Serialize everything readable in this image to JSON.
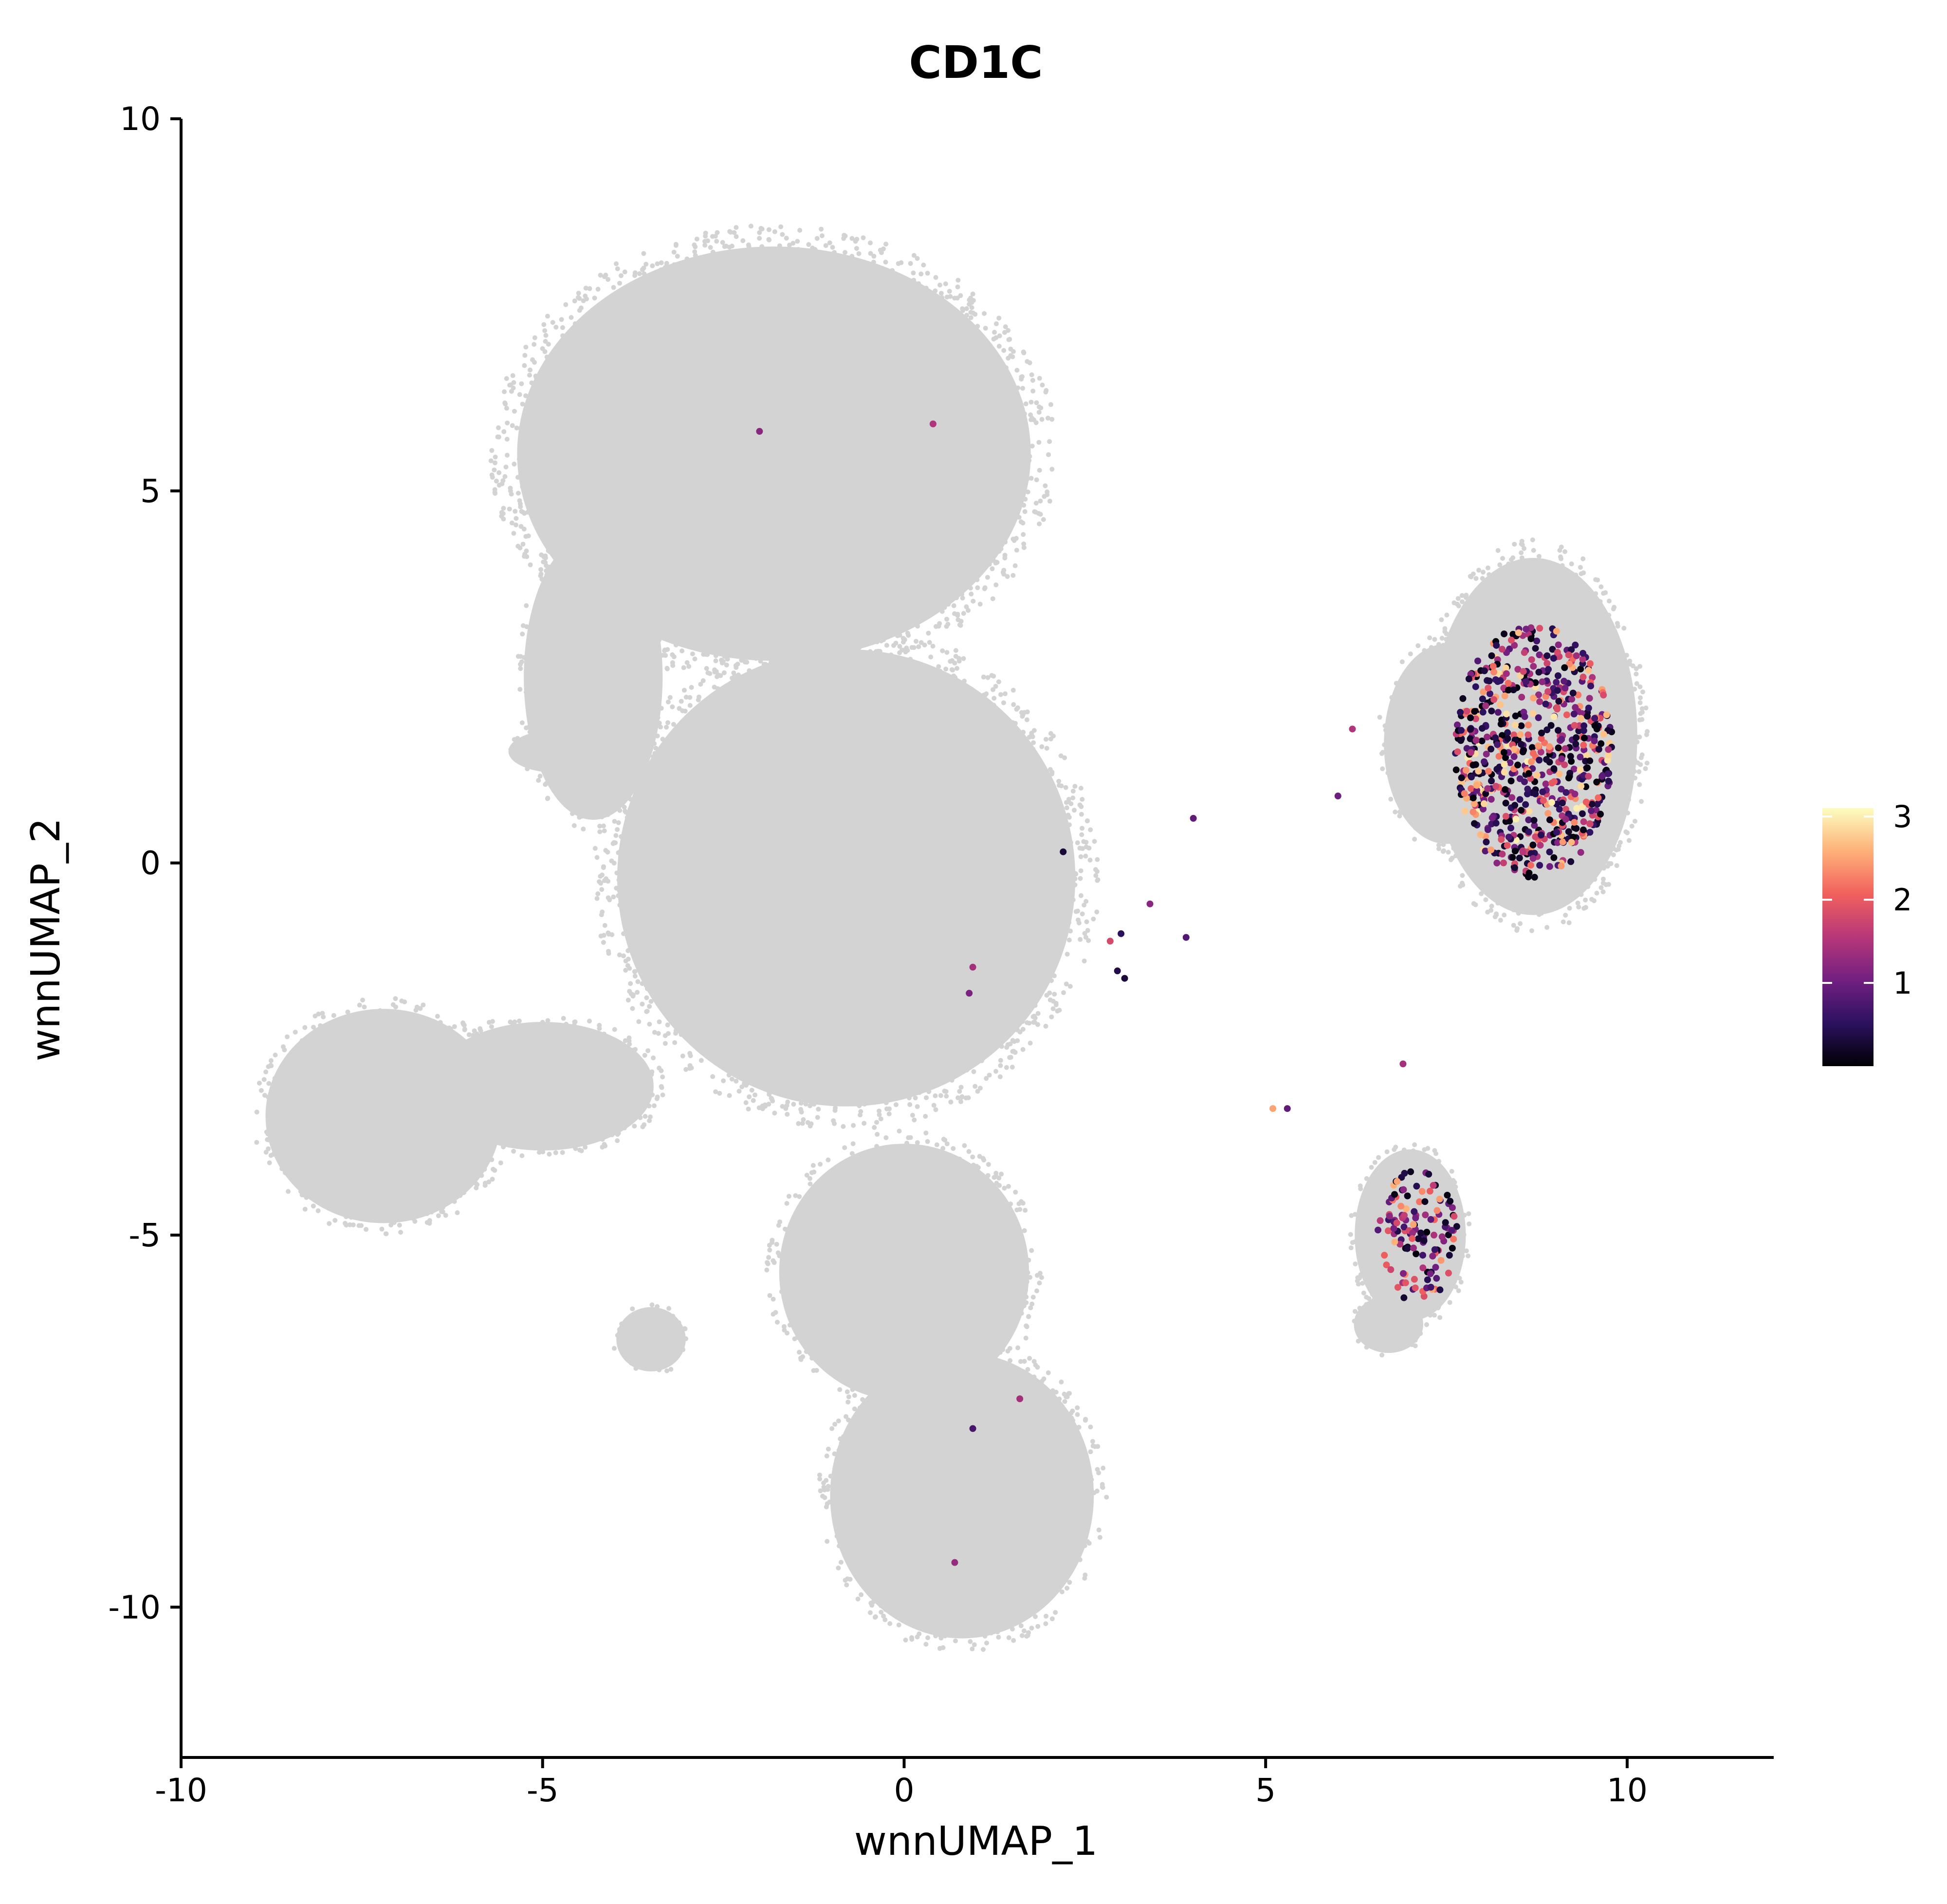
{
  "chart_data": {
    "type": "scatter",
    "title": "CD1C",
    "xlabel": "wnnUMAP_1",
    "ylabel": "wnnUMAP_2",
    "xlim": [
      -10,
      12
    ],
    "ylim": [
      -12,
      10
    ],
    "x_ticks": [
      {
        "value": -10,
        "label": "-10"
      },
      {
        "value": -5,
        "label": "-5"
      },
      {
        "value": 0,
        "label": "0"
      },
      {
        "value": 5,
        "label": "5"
      },
      {
        "value": 10,
        "label": "10"
      }
    ],
    "y_ticks": [
      {
        "value": 10,
        "label": "10"
      },
      {
        "value": 5,
        "label": "5"
      },
      {
        "value": 0,
        "label": "0"
      },
      {
        "value": -5,
        "label": "-5"
      },
      {
        "value": -10,
        "label": "-10"
      }
    ],
    "grid": false,
    "background_color": "#d3d3d3",
    "colorbar": {
      "range": [
        0,
        3.1
      ],
      "ticks": [
        {
          "value": 1,
          "label": "1"
        },
        {
          "value": 2,
          "label": "2"
        },
        {
          "value": 3,
          "label": "3"
        }
      ],
      "colors": [
        "#000004",
        "#2c115f",
        "#721f81",
        "#b73779",
        "#f1605d",
        "#feb078",
        "#fcfdbf"
      ],
      "placement": "right"
    },
    "background_regions": [
      {
        "name": "top-cluster",
        "cx": -1.8,
        "cy": 5.5,
        "rx": 3.7,
        "ry": 2.9
      },
      {
        "name": "upper-left-arm",
        "cx": -4.3,
        "cy": 2.5,
        "rx": 1.0,
        "ry": 2.0
      },
      {
        "name": "left-arm-tip",
        "cx": -4.8,
        "cy": 1.5,
        "rx": 0.7,
        "ry": 0.3
      },
      {
        "name": "center-body",
        "cx": -0.8,
        "cy": -0.2,
        "rx": 3.3,
        "ry": 3.2
      },
      {
        "name": "left-lobe",
        "cx": -7.2,
        "cy": -3.4,
        "rx": 1.7,
        "ry": 1.5
      },
      {
        "name": "left-bridge",
        "cx": -5.0,
        "cy": -3.0,
        "rx": 1.6,
        "ry": 0.9
      },
      {
        "name": "lower-body",
        "cx": 0.0,
        "cy": -5.5,
        "rx": 1.8,
        "ry": 1.8
      },
      {
        "name": "bottom-lobe",
        "cx": 0.8,
        "cy": -8.5,
        "rx": 1.9,
        "ry": 2.0
      },
      {
        "name": "small-lower-left",
        "cx": -3.5,
        "cy": -6.4,
        "rx": 0.5,
        "ry": 0.45
      },
      {
        "name": "right-top-cluster",
        "cx": 8.7,
        "cy": 1.7,
        "rx": 1.5,
        "ry": 2.5
      },
      {
        "name": "right-top-cluster-left",
        "cx": 7.5,
        "cy": 1.6,
        "rx": 0.9,
        "ry": 1.4
      },
      {
        "name": "right-bottom-cluster",
        "cx": 7.0,
        "cy": -5.0,
        "rx": 0.8,
        "ry": 1.2
      },
      {
        "name": "right-bottom-lower",
        "cx": 6.7,
        "cy": -6.2,
        "rx": 0.5,
        "ry": 0.4
      }
    ],
    "expressing_clusters": [
      {
        "name": "cluster-right-top",
        "cx": 8.7,
        "cy": 1.5,
        "rx": 1.1,
        "ry": 1.7,
        "n": 700,
        "max_value": 3.0
      },
      {
        "name": "cluster-right-bottom",
        "cx": 7.1,
        "cy": -5.0,
        "rx": 0.55,
        "ry": 0.9,
        "n": 130,
        "max_value": 2.6
      }
    ],
    "expressing_points": [
      {
        "x": -2.0,
        "y": 5.8,
        "value": 1.2
      },
      {
        "x": 0.4,
        "y": 5.9,
        "value": 1.5
      },
      {
        "x": 2.2,
        "y": 0.15,
        "value": 0.3
      },
      {
        "x": 4.0,
        "y": 0.6,
        "value": 0.9
      },
      {
        "x": 3.4,
        "y": -0.55,
        "value": 1.2
      },
      {
        "x": 2.85,
        "y": -1.05,
        "value": 1.8
      },
      {
        "x": 3.0,
        "y": -0.95,
        "value": 0.5
      },
      {
        "x": 3.9,
        "y": -1.0,
        "value": 0.8
      },
      {
        "x": 2.95,
        "y": -1.45,
        "value": 0.4
      },
      {
        "x": 3.05,
        "y": -1.55,
        "value": 0.3
      },
      {
        "x": 0.95,
        "y": -1.4,
        "value": 1.4
      },
      {
        "x": 0.9,
        "y": -1.75,
        "value": 1.1
      },
      {
        "x": 1.6,
        "y": -7.2,
        "value": 1.4
      },
      {
        "x": 0.95,
        "y": -7.6,
        "value": 0.7
      },
      {
        "x": 0.7,
        "y": -9.4,
        "value": 1.3
      },
      {
        "x": 5.1,
        "y": -3.3,
        "value": 2.5
      },
      {
        "x": 5.3,
        "y": -3.3,
        "value": 0.9
      },
      {
        "x": 6.9,
        "y": -2.7,
        "value": 1.4
      },
      {
        "x": 6.2,
        "y": 1.8,
        "value": 1.5
      },
      {
        "x": 6.0,
        "y": 0.9,
        "value": 1.0
      }
    ]
  }
}
